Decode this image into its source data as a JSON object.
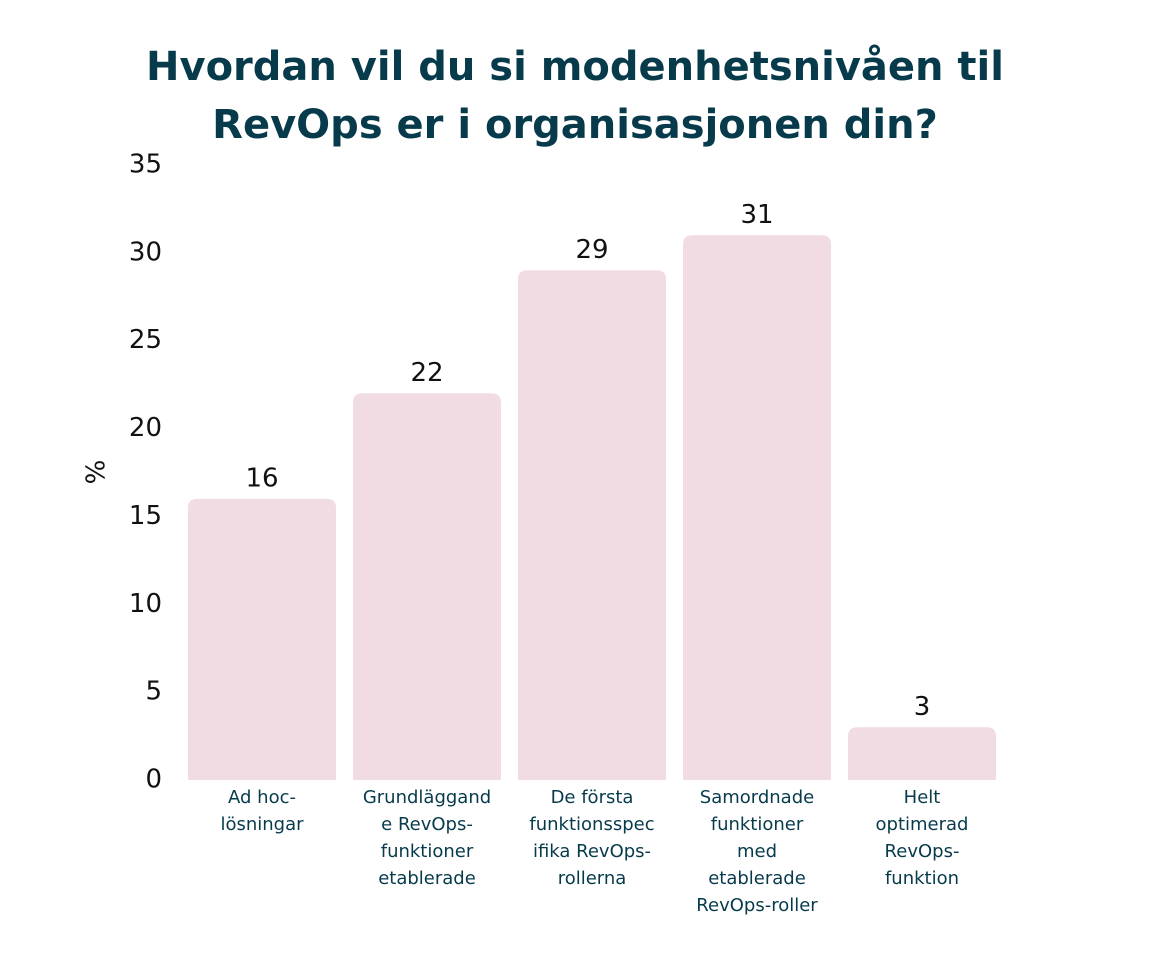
{
  "chart_data": {
    "type": "bar",
    "title": "Hvordan vil du si modenhetsnivåen til RevOps er i organisasjonen din?",
    "y_label": "%",
    "categories": [
      "Ad hoc-lösningar",
      "Grundläggande RevOps-funktioner etablerade",
      "De första funktionsspecifika RevOps-rollerna",
      "Samordnade funktioner med etablerade RevOps-roller",
      "Helt optimerad RevOps-funktion"
    ],
    "values": [
      16,
      22,
      29,
      31,
      3
    ],
    "color": "#f0dce2",
    "ylim": [
      0,
      35
    ],
    "yticks": [
      0,
      5,
      10,
      15,
      20,
      25,
      30,
      35
    ],
    "grid": false
  }
}
